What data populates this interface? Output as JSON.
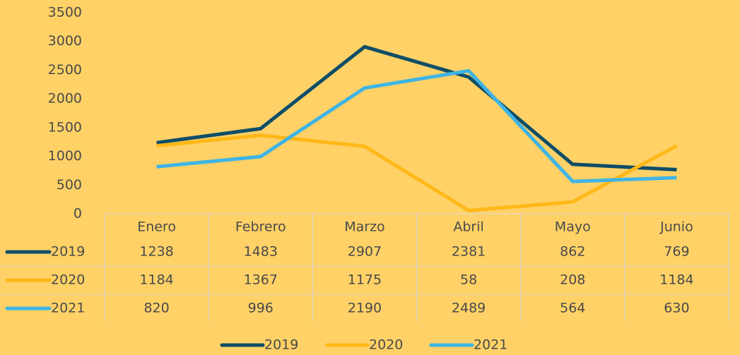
{
  "chart_data": {
    "type": "line",
    "categories": [
      "Enero",
      "Febrero",
      "Marzo",
      "Abril",
      "Mayo",
      "Junio"
    ],
    "series": [
      {
        "name": "2019",
        "color": "#0e4d68",
        "values": [
          1238,
          1483,
          2907,
          2381,
          862,
          769
        ]
      },
      {
        "name": "2020",
        "color": "#ffb818",
        "values": [
          1184,
          1367,
          1175,
          58,
          208,
          1184
        ]
      },
      {
        "name": "2021",
        "color": "#3eb4e4",
        "values": [
          820,
          996,
          2190,
          2489,
          564,
          630
        ]
      }
    ],
    "ylim": [
      0,
      3500
    ],
    "yticks": [
      0,
      500,
      1000,
      1500,
      2000,
      2500,
      3000,
      3500
    ],
    "grid": false,
    "legend": "bottom",
    "data_table": true
  }
}
